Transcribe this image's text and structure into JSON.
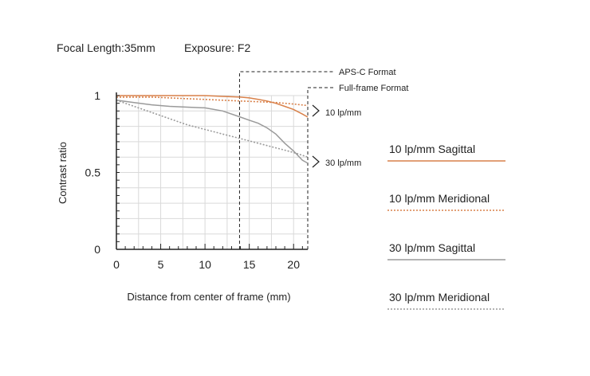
{
  "header": {
    "focal_length": "Focal Length:35mm",
    "exposure": "Exposure: F2"
  },
  "colors": {
    "orange": "#d9814a",
    "gray": "#9a9a9a",
    "axis": "#222222",
    "grid": "#d9d9d9"
  },
  "chart_data": {
    "type": "line",
    "title": "",
    "xlabel": "Distance from center of frame (mm)",
    "ylabel": "Contrast ratio",
    "xlim": [
      0,
      21.6
    ],
    "ylim": [
      0,
      1.0
    ],
    "x_ticks": [
      0,
      5,
      10,
      15,
      20
    ],
    "x_tick_labels": [
      "0",
      "5",
      "10",
      "15",
      "20"
    ],
    "y_ticks": [
      0,
      0.5,
      1
    ],
    "y_tick_labels": [
      "0",
      "0.5",
      "1"
    ],
    "grid": true,
    "legend_position": "right",
    "series": [
      {
        "name": "10 lp/mm Sagittal",
        "color": "#d9814a",
        "dash": "solid",
        "x": [
          0,
          2,
          4,
          6,
          8,
          10,
          12,
          14,
          15,
          16,
          17,
          18,
          19,
          20,
          21,
          21.6
        ],
        "y": [
          1.0,
          1.0,
          1.0,
          1.0,
          1.0,
          1.0,
          0.995,
          0.99,
          0.985,
          0.975,
          0.965,
          0.95,
          0.93,
          0.91,
          0.88,
          0.86
        ]
      },
      {
        "name": "10 lp/mm Meridional",
        "color": "#d9814a",
        "dash": "dotted",
        "x": [
          0,
          2,
          4,
          6,
          8,
          10,
          12,
          14,
          16,
          18,
          20,
          21.6
        ],
        "y": [
          0.99,
          0.99,
          0.99,
          0.985,
          0.98,
          0.975,
          0.97,
          0.965,
          0.96,
          0.955,
          0.945,
          0.935
        ]
      },
      {
        "name": "30 lp/mm Sagittal",
        "color": "#9a9a9a",
        "dash": "solid",
        "x": [
          0,
          2,
          4,
          6,
          8,
          10,
          12,
          14,
          15,
          16,
          17,
          18,
          19,
          20,
          21,
          21.6
        ],
        "y": [
          0.97,
          0.955,
          0.94,
          0.93,
          0.925,
          0.92,
          0.9,
          0.86,
          0.84,
          0.82,
          0.79,
          0.75,
          0.69,
          0.64,
          0.58,
          0.56
        ]
      },
      {
        "name": "30 lp/mm Meridional",
        "color": "#9a9a9a",
        "dash": "dotted",
        "x": [
          0,
          2,
          4,
          6,
          8,
          10,
          12,
          14,
          16,
          18,
          20,
          21.6
        ],
        "y": [
          0.97,
          0.93,
          0.89,
          0.85,
          0.81,
          0.78,
          0.75,
          0.72,
          0.69,
          0.66,
          0.63,
          0.6
        ]
      }
    ],
    "annotations": {
      "aps_c": {
        "label": "APS-C Format",
        "x": 13.9
      },
      "full_frame": {
        "label": "Full-frame Format",
        "x": 21.6
      },
      "bracket_10": {
        "label": "10 lp/mm"
      },
      "bracket_30": {
        "label": "30 lp/mm"
      }
    }
  }
}
